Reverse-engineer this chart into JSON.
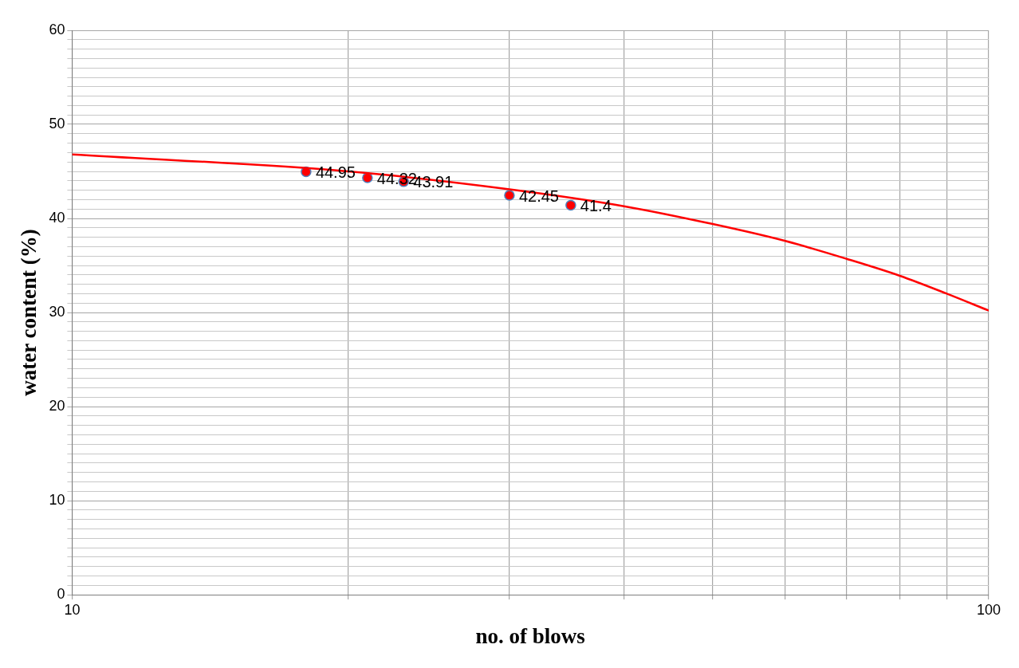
{
  "chart_data": {
    "type": "scatter",
    "xlabel": "no. of blows",
    "ylabel": "water content (%)",
    "log": "x",
    "xlim": [
      10,
      100
    ],
    "xticks": [
      10,
      {
        "value": 20,
        "label": null
      },
      {
        "value": 30,
        "label": null
      },
      {
        "value": 40,
        "label": null
      },
      {
        "value": 50,
        "label": null
      },
      {
        "value": 60,
        "label": null
      },
      {
        "value": 70,
        "label": null
      },
      {
        "value": 80,
        "label": null
      },
      {
        "value": 90,
        "label": null
      },
      100
    ],
    "ylim": [
      0,
      60
    ],
    "yticks": [
      0,
      {
        "value": 1,
        "label": null
      },
      {
        "value": 2,
        "label": null
      },
      {
        "value": 3,
        "label": null
      },
      {
        "value": 4,
        "label": null
      },
      {
        "value": 5,
        "label": null
      },
      {
        "value": 6,
        "label": null
      },
      {
        "value": 7,
        "label": null
      },
      {
        "value": 8,
        "label": null
      },
      {
        "value": 9,
        "label": null
      },
      10,
      {
        "value": 11,
        "label": null
      },
      {
        "value": 12,
        "label": null
      },
      {
        "value": 13,
        "label": null
      },
      {
        "value": 14,
        "label": null
      },
      {
        "value": 15,
        "label": null
      },
      {
        "value": 16,
        "label": null
      },
      {
        "value": 17,
        "label": null
      },
      {
        "value": 18,
        "label": null
      },
      {
        "value": 19,
        "label": null
      },
      20,
      {
        "value": 21,
        "label": null
      },
      {
        "value": 22,
        "label": null
      },
      {
        "value": 23,
        "label": null
      },
      {
        "value": 24,
        "label": null
      },
      {
        "value": 25,
        "label": null
      },
      {
        "value": 26,
        "label": null
      },
      {
        "value": 27,
        "label": null
      },
      {
        "value": 28,
        "label": null
      },
      {
        "value": 29,
        "label": null
      },
      30,
      {
        "value": 31,
        "label": null
      },
      {
        "value": 32,
        "label": null
      },
      {
        "value": 33,
        "label": null
      },
      {
        "value": 34,
        "label": null
      },
      {
        "value": 35,
        "label": null
      },
      {
        "value": 36,
        "label": null
      },
      {
        "value": 37,
        "label": null
      },
      {
        "value": 38,
        "label": null
      },
      {
        "value": 39,
        "label": null
      },
      40,
      {
        "value": 41,
        "label": null
      },
      {
        "value": 42,
        "label": null
      },
      {
        "value": 43,
        "label": null
      },
      {
        "value": 44,
        "label": null
      },
      {
        "value": 45,
        "label": null
      },
      {
        "value": 46,
        "label": null
      },
      {
        "value": 47,
        "label": null
      },
      {
        "value": 48,
        "label": null
      },
      {
        "value": 49,
        "label": null
      },
      50,
      {
        "value": 51,
        "label": null
      },
      {
        "value": 52,
        "label": null
      },
      {
        "value": 53,
        "label": null
      },
      {
        "value": 54,
        "label": null
      },
      {
        "value": 55,
        "label": null
      },
      {
        "value": 56,
        "label": null
      },
      {
        "value": 57,
        "label": null
      },
      {
        "value": 58,
        "label": null
      },
      {
        "value": 59,
        "label": null
      },
      60
    ],
    "grid": true,
    "legend": false,
    "marker": "circle",
    "series": [
      {
        "color": "#ff0000",
        "x": [
          18,
          21,
          23,
          30,
          35
        ],
        "values": [
          44.95,
          44.32,
          43.91,
          42.45,
          41.4
        ],
        "value_labels": [
          "44.95",
          "44.32",
          "43.91",
          "42.45",
          "41.4"
        ]
      },
      {
        "type": "line",
        "color": "#ff0000",
        "marker": "none",
        "line_style": "solid",
        "x": [
          10,
          20,
          30,
          40,
          50,
          60,
          70,
          80,
          90,
          100
        ],
        "values": [
          46.8,
          45.0,
          43.1,
          41.3,
          39.4,
          37.6,
          35.7,
          33.9,
          32.0,
          30.2
        ]
      }
    ]
  }
}
